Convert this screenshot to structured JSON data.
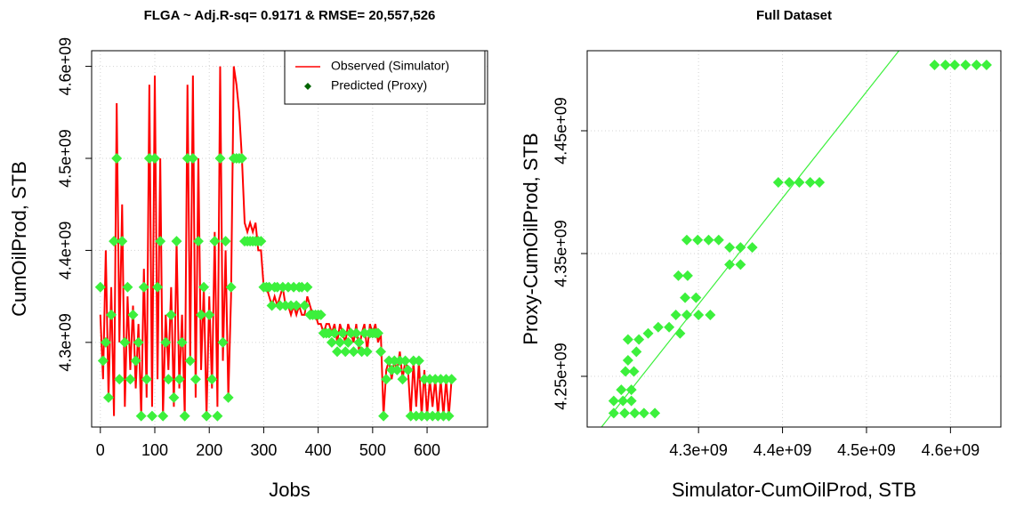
{
  "chart_data": [
    {
      "type": "line",
      "title": "FLGA ~ Adj.R-sq= 0.9171 & RMSE= 20,557,526",
      "x_label": "Jobs",
      "y_label": "CumOilProd, STB",
      "xlim": [
        -16,
        711
      ],
      "ylim": [
        4208000000.0,
        4617000000.0
      ],
      "xticks": [
        0,
        100,
        200,
        300,
        400,
        500,
        600
      ],
      "yticks": [
        {
          "value": 4300000000.0,
          "label": "4.3e+09"
        },
        {
          "value": 4400000000.0,
          "label": "4.4e+09"
        },
        {
          "value": 4500000000.0,
          "label": "4.5e+09"
        },
        {
          "value": 4600000000.0,
          "label": "4.6e+09"
        }
      ],
      "grid": true,
      "legend": "top-right",
      "x": [
        0,
        5,
        10,
        15,
        20,
        25,
        30,
        35,
        40,
        45,
        50,
        55,
        60,
        65,
        70,
        75,
        80,
        85,
        90,
        95,
        100,
        105,
        110,
        115,
        120,
        125,
        130,
        135,
        140,
        145,
        150,
        155,
        160,
        165,
        170,
        175,
        180,
        185,
        190,
        195,
        200,
        205,
        210,
        215,
        220,
        225,
        230,
        235,
        240,
        245,
        250,
        255,
        260,
        265,
        270,
        275,
        280,
        285,
        290,
        295,
        300,
        305,
        310,
        315,
        320,
        325,
        330,
        335,
        340,
        345,
        350,
        355,
        360,
        365,
        370,
        375,
        380,
        385,
        390,
        395,
        400,
        405,
        410,
        415,
        420,
        425,
        430,
        435,
        440,
        445,
        450,
        455,
        460,
        465,
        470,
        475,
        480,
        485,
        490,
        495,
        500,
        505,
        510,
        515,
        520,
        525,
        530,
        535,
        540,
        545,
        550,
        555,
        560,
        565,
        570,
        575,
        580,
        585,
        590,
        595,
        600,
        605,
        610,
        615,
        620,
        625,
        630,
        635,
        640,
        645
      ],
      "series": [
        {
          "name": "Observed (Simulator)",
          "style": "line",
          "color": "#ff0000",
          "legend_color": "#ff0000",
          "values": [
            4330000000.0,
            4260000000.0,
            4400000000.0,
            4240000000.0,
            4360000000.0,
            4220000000.0,
            4560000000.0,
            4300000000.0,
            4450000000.0,
            4230000000.0,
            4350000000.0,
            4270000000.0,
            4340000000.0,
            4250000000.0,
            4320000000.0,
            4220000000.0,
            4380000000.0,
            4240000000.0,
            4580000000.0,
            4230000000.0,
            4590000000.0,
            4260000000.0,
            4500000000.0,
            4220000000.0,
            4330000000.0,
            4270000000.0,
            4360000000.0,
            4230000000.0,
            4410000000.0,
            4250000000.0,
            4330000000.0,
            4220000000.0,
            4580000000.0,
            4280000000.0,
            4590000000.0,
            4240000000.0,
            4500000000.0,
            4270000000.0,
            4360000000.0,
            4220000000.0,
            4350000000.0,
            4250000000.0,
            4420000000.0,
            4230000000.0,
            4600000000.0,
            4280000000.0,
            4400000000.0,
            4240000000.0,
            4350000000.0,
            4600000000.0,
            4580000000.0,
            4550000000.0,
            4500000000.0,
            4430000000.0,
            4420000000.0,
            4430000000.0,
            4420000000.0,
            4430000000.0,
            4400000000.0,
            4400000000.0,
            4360000000.0,
            4360000000.0,
            4350000000.0,
            4340000000.0,
            4350000000.0,
            4340000000.0,
            4350000000.0,
            4360000000.0,
            4340000000.0,
            4340000000.0,
            4330000000.0,
            4340000000.0,
            4330000000.0,
            4340000000.0,
            4330000000.0,
            4330000000.0,
            4350000000.0,
            4340000000.0,
            4330000000.0,
            4330000000.0,
            4320000000.0,
            4320000000.0,
            4310000000.0,
            4320000000.0,
            4320000000.0,
            4310000000.0,
            4320000000.0,
            4300000000.0,
            4320000000.0,
            4310000000.0,
            4300000000.0,
            4320000000.0,
            4310000000.0,
            4300000000.0,
            4320000000.0,
            4290000000.0,
            4310000000.0,
            4320000000.0,
            4290000000.0,
            4320000000.0,
            4310000000.0,
            4320000000.0,
            4300000000.0,
            4310000000.0,
            4220000000.0,
            4270000000.0,
            4280000000.0,
            4260000000.0,
            4280000000.0,
            4270000000.0,
            4290000000.0,
            4260000000.0,
            4280000000.0,
            4270000000.0,
            4220000000.0,
            4280000000.0,
            4230000000.0,
            4280000000.0,
            4220000000.0,
            4270000000.0,
            4220000000.0,
            4260000000.0,
            4230000000.0,
            4260000000.0,
            4220000000.0,
            4260000000.0,
            4220000000.0,
            4260000000.0,
            4220000000.0,
            4260000000.0
          ]
        },
        {
          "name": "Predicted (Proxy)",
          "style": "points",
          "color": "#3cf03c",
          "legend_color": "#006400",
          "values": [
            4360000000.0,
            4280000000.0,
            4300000000.0,
            4240000000.0,
            4330000000.0,
            4410000000.0,
            4500000000.0,
            4260000000.0,
            4410000000.0,
            4300000000.0,
            4360000000.0,
            4260000000.0,
            4330000000.0,
            4280000000.0,
            4300000000.0,
            4220000000.0,
            4360000000.0,
            4260000000.0,
            4500000000.0,
            4220000000.0,
            4500000000.0,
            4360000000.0,
            4410000000.0,
            4220000000.0,
            4300000000.0,
            4260000000.0,
            4330000000.0,
            4240000000.0,
            4410000000.0,
            4260000000.0,
            4300000000.0,
            4220000000.0,
            4500000000.0,
            4280000000.0,
            4500000000.0,
            4260000000.0,
            4410000000.0,
            4330000000.0,
            4360000000.0,
            4220000000.0,
            4330000000.0,
            4260000000.0,
            4410000000.0,
            4220000000.0,
            4500000000.0,
            4300000000.0,
            4410000000.0,
            4240000000.0,
            4360000000.0,
            4500000000.0,
            4500000000.0,
            4500000000.0,
            4500000000.0,
            4410000000.0,
            4410000000.0,
            4410000000.0,
            4410000000.0,
            4410000000.0,
            4410000000.0,
            4410000000.0,
            4360000000.0,
            4360000000.0,
            4360000000.0,
            4340000000.0,
            4360000000.0,
            4360000000.0,
            4340000000.0,
            4360000000.0,
            4340000000.0,
            4360000000.0,
            4340000000.0,
            4360000000.0,
            4340000000.0,
            4360000000.0,
            4360000000.0,
            4340000000.0,
            4360000000.0,
            4330000000.0,
            4330000000.0,
            4330000000.0,
            4330000000.0,
            4330000000.0,
            4310000000.0,
            4310000000.0,
            4310000000.0,
            4300000000.0,
            4310000000.0,
            4290000000.0,
            4300000000.0,
            4310000000.0,
            4290000000.0,
            4300000000.0,
            4310000000.0,
            4290000000.0,
            4310000000.0,
            4300000000.0,
            4290000000.0,
            4310000000.0,
            4290000000.0,
            4310000000.0,
            4310000000.0,
            4310000000.0,
            4310000000.0,
            4290000000.0,
            4220000000.0,
            4260000000.0,
            4280000000.0,
            4270000000.0,
            4280000000.0,
            4270000000.0,
            4280000000.0,
            4260000000.0,
            4280000000.0,
            4270000000.0,
            4220000000.0,
            4280000000.0,
            4220000000.0,
            4280000000.0,
            4220000000.0,
            4260000000.0,
            4220000000.0,
            4260000000.0,
            4220000000.0,
            4260000000.0,
            4220000000.0,
            4260000000.0,
            4220000000.0,
            4260000000.0,
            4220000000.0,
            4260000000.0
          ]
        }
      ]
    },
    {
      "type": "scatter",
      "title": "Full Dataset",
      "x_label": "Simulator-CumOilProd, STB",
      "y_label": "Proxy-CumOilProd, STB",
      "xlim": [
        4167400000.0,
        4660000000.0
      ],
      "ylim": [
        4208700000.0,
        4515200000.0
      ],
      "xticks": [
        {
          "value": 4300000000.0,
          "label": "4.3e+09"
        },
        {
          "value": 4400000000.0,
          "label": "4.4e+09"
        },
        {
          "value": 4500000000.0,
          "label": "4.5e+09"
        },
        {
          "value": 4600000000.0,
          "label": "4.6e+09"
        }
      ],
      "yticks": [
        {
          "value": 4250000000.0,
          "label": "4.25e+09"
        },
        {
          "value": 4350000000.0,
          "label": "4.35e+09"
        },
        {
          "value": 4450000000.0,
          "label": "4.45e+09"
        }
      ],
      "grid": true,
      "color": "#3cf03c",
      "x": [
        4581000000.0,
        4594000000.0,
        4605000000.0,
        4618000000.0,
        4631000000.0,
        4643000000.0,
        4395000000.0,
        4408000000.0,
        4420000000.0,
        4433000000.0,
        4444000000.0,
        4286000000.0,
        4299000000.0,
        4312000000.0,
        4324000000.0,
        4337000000.0,
        4350000000.0,
        4364000000.0,
        4337000000.0,
        4350000000.0,
        4276000000.0,
        4287000000.0,
        4284000000.0,
        4297000000.0,
        4273000000.0,
        4286000000.0,
        4300000000.0,
        4314000000.0,
        4252000000.0,
        4265000000.0,
        4240000000.0,
        4278000000.0,
        4216000000.0,
        4229000000.0,
        4226000000.0,
        4216000000.0,
        4213000000.0,
        4223000000.0,
        4208000000.0,
        4220000000.0,
        4199000000.0,
        4210000000.0,
        4220000000.0,
        4199000000.0,
        4212000000.0,
        4224000000.0,
        4235000000.0,
        4248000000.0
      ],
      "values": [
        4503600000.0,
        4503600000.0,
        4503600000.0,
        4503600000.0,
        4503600000.0,
        4503600000.0,
        4408000000.0,
        4408000000.0,
        4408000000.0,
        4408000000.0,
        4408000000.0,
        4361000000.0,
        4361000000.0,
        4361000000.0,
        4361000000.0,
        4355000000.0,
        4355000000.0,
        4355000000.0,
        4341000000.0,
        4341000000.0,
        4332000000.0,
        4332000000.0,
        4314000000.0,
        4314000000.0,
        4300000000.0,
        4300000000.0,
        4300000000.0,
        4300000000.0,
        4290000000.0,
        4290000000.0,
        4285000000.0,
        4285000000.0,
        4280000000.0,
        4280000000.0,
        4270000000.0,
        4263000000.0,
        4254000000.0,
        4254000000.0,
        4239000000.0,
        4239000000.0,
        4230000000.0,
        4230000000.0,
        4230000000.0,
        4220000000.0,
        4220000000.0,
        4220000000.0,
        4220000000.0,
        4220000000.0
      ],
      "fit": {
        "slope": 0.8653,
        "intercept": 587900000
      }
    }
  ]
}
